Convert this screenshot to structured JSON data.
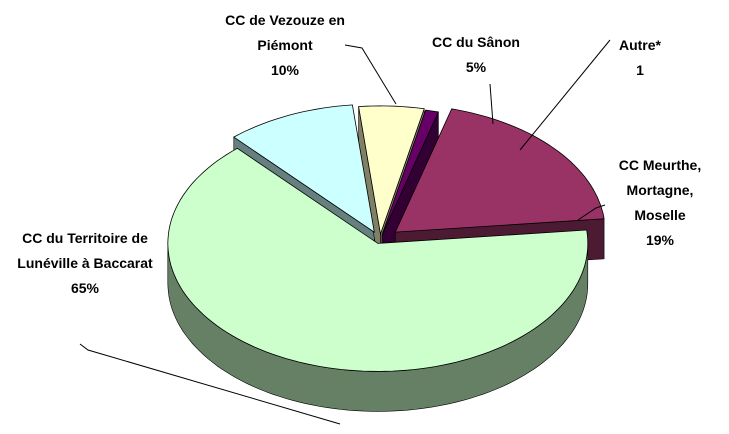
{
  "chart_data": {
    "type": "pie3d",
    "categories": [
      "CC de Vezouze en Piémont",
      "CC du Sânon",
      "Autre*",
      "CC Meurthe, Mortagne, Moselle",
      "CC du Territoire de Lunéville à Baccarat"
    ],
    "values": [
      10,
      5,
      1,
      19,
      65
    ],
    "value_labels": [
      "10%",
      "5%",
      "1",
      "19%",
      "65%"
    ],
    "colors": [
      "#ccffff",
      "#ffffcc",
      "#660066",
      "#993366",
      "#ccffcc"
    ]
  }
}
